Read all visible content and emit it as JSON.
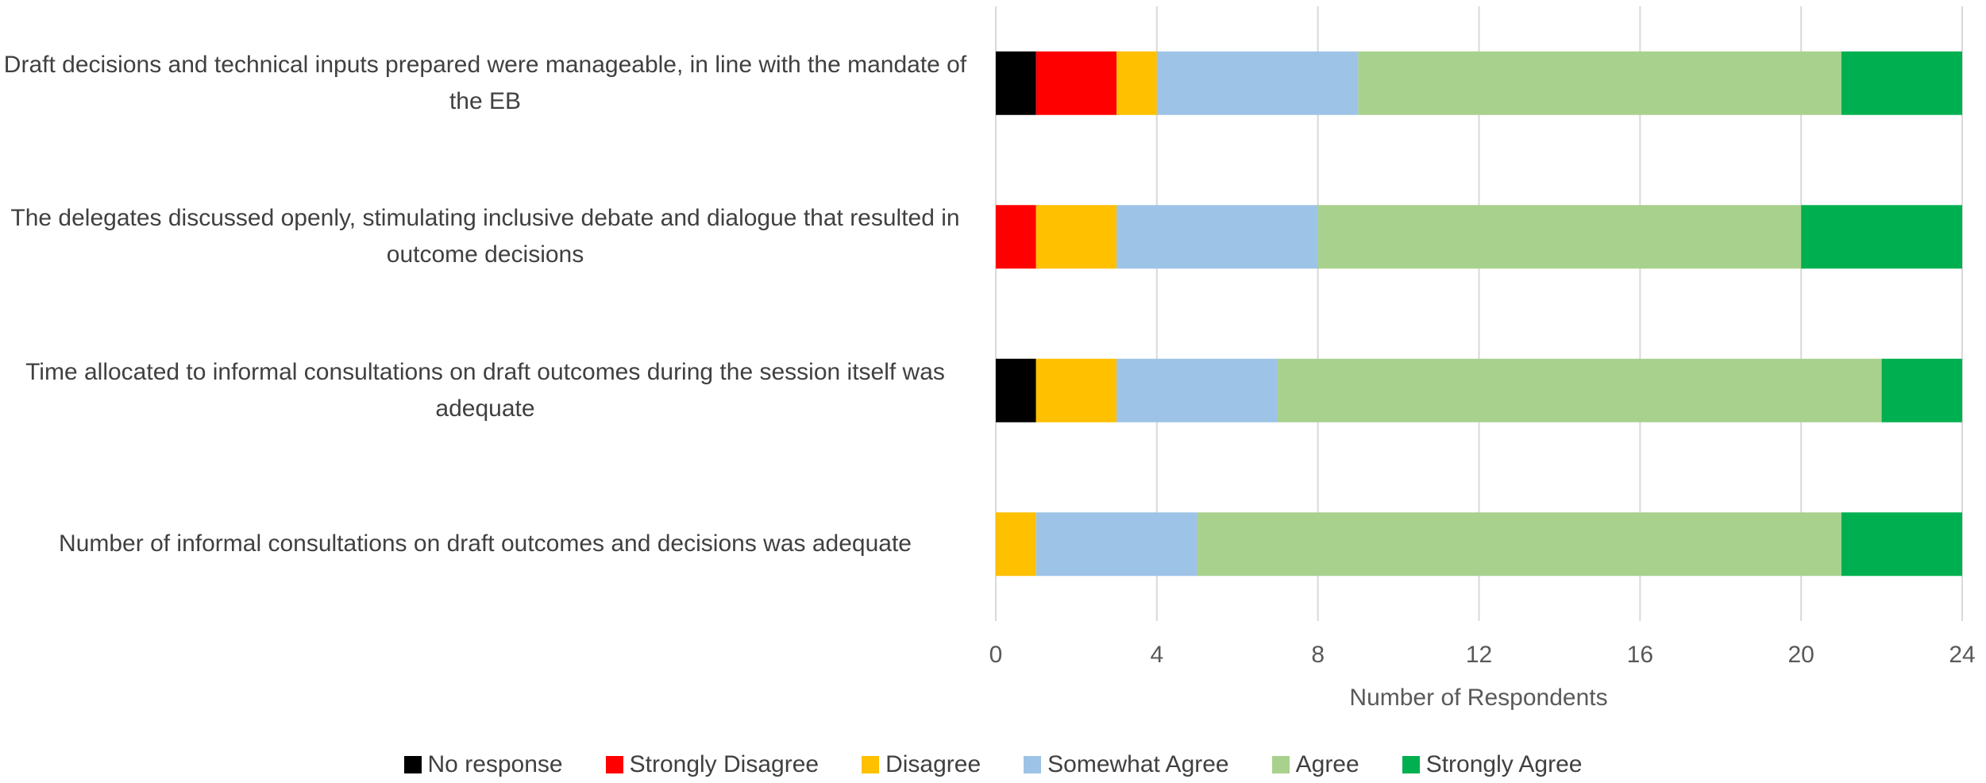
{
  "chart_data": {
    "type": "stacked_bar_horizontal",
    "categories": [
      "Draft decisions and technical inputs prepared were manageable, in line with the mandate of the EB",
      "The delegates discussed openly, stimulating inclusive debate and dialogue that resulted in outcome decisions",
      "Time allocated to informal consultations on draft outcomes during the session itself was adequate",
      "Number of informal consultations on draft outcomes and decisions was adequate"
    ],
    "series": [
      {
        "name": "No response",
        "color": "#000000",
        "values": [
          1,
          0,
          1,
          0
        ]
      },
      {
        "name": "Strongly Disagree",
        "color": "#ff0000",
        "values": [
          2,
          1,
          0,
          0
        ]
      },
      {
        "name": "Disagree",
        "color": "#ffc000",
        "values": [
          1,
          2,
          2,
          1
        ]
      },
      {
        "name": "Somewhat Agree",
        "color": "#9dc3e6",
        "values": [
          5,
          5,
          4,
          4
        ]
      },
      {
        "name": "Agree",
        "color": "#a9d18e",
        "values": [
          12,
          12,
          15,
          16
        ]
      },
      {
        "name": "Strongly Agree",
        "color": "#00b050",
        "values": [
          3,
          4,
          2,
          3
        ]
      }
    ],
    "x_axis_label": "Number of Respondents",
    "xlim": [
      0,
      24
    ],
    "xticks": [
      0,
      4,
      8,
      12,
      16,
      20,
      24
    ],
    "grid": true,
    "legend": "bottom"
  }
}
